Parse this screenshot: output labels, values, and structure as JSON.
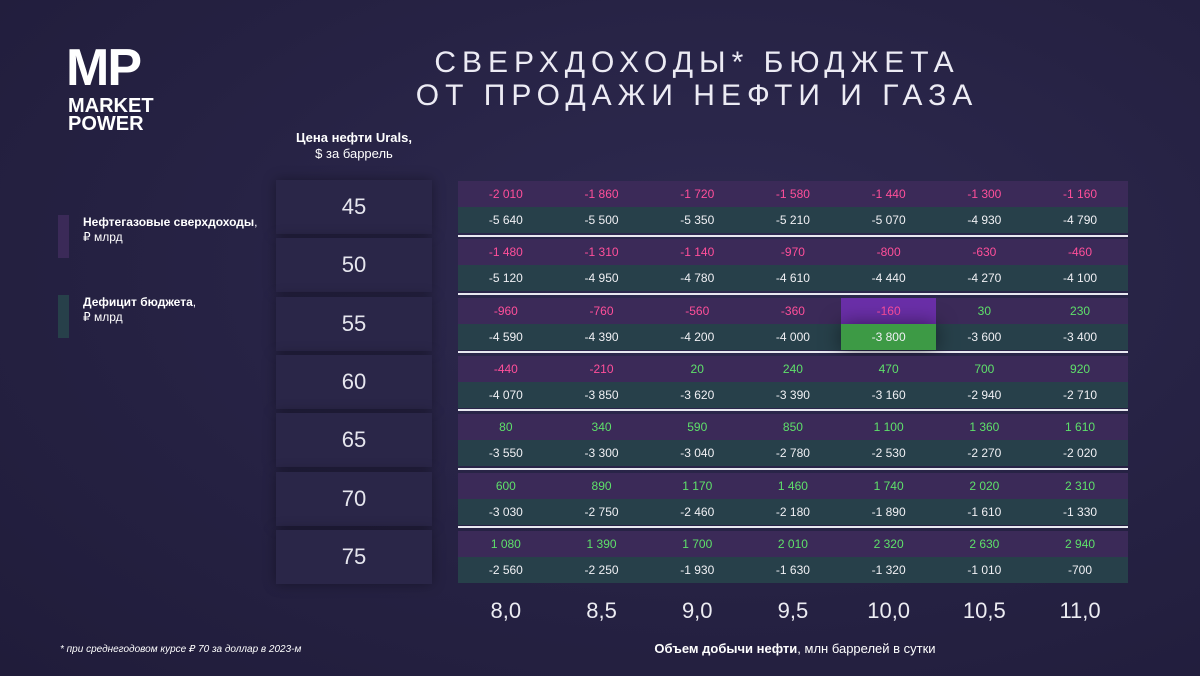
{
  "logo": {
    "mark": "MP",
    "lines": [
      "MARKET",
      "POWER"
    ]
  },
  "title": [
    "СВЕРХДОХОДЫ* БЮДЖЕТА",
    "ОТ ПРОДАЖИ НЕФТИ И ГАЗА"
  ],
  "row_header": {
    "title": "Цена нефти Urals,",
    "unit": "$ за баррель"
  },
  "legend": [
    {
      "label": "Нефтегазовые сверхдоходы",
      "sep": ",",
      "unit": "₽ млрд",
      "color": "#3b2a58"
    },
    {
      "label": "Дефицит бюджета",
      "sep": ",",
      "unit": "₽ млрд",
      "color": "#27404a"
    }
  ],
  "prices": [
    "45",
    "50",
    "55",
    "60",
    "65",
    "70",
    "75"
  ],
  "volumes": [
    "8,0",
    "8,5",
    "9,0",
    "9,5",
    "10,0",
    "10,5",
    "11,0"
  ],
  "rows": [
    {
      "excess": [
        "-2 010",
        "-1 860",
        "-1 720",
        "-1 580",
        "-1 440",
        "-1 300",
        "-1 160"
      ],
      "deficit": [
        "-5 640",
        "-5 500",
        "-5 350",
        "-5 210",
        "-5 070",
        "-4 930",
        "-4 790"
      ]
    },
    {
      "excess": [
        "-1 480",
        "-1 310",
        "-1 140",
        "-970",
        "-800",
        "-630",
        "-460"
      ],
      "deficit": [
        "-5 120",
        "-4 950",
        "-4 780",
        "-4 610",
        "-4 440",
        "-4 270",
        "-4 100"
      ]
    },
    {
      "excess": [
        "-960",
        "-760",
        "-560",
        "-360",
        "-160",
        "30",
        "230"
      ],
      "deficit": [
        "-4 590",
        "-4 390",
        "-4 200",
        "-4 000",
        "-3 800",
        "-3 600",
        "-3 400"
      ]
    },
    {
      "excess": [
        "-440",
        "-210",
        "20",
        "240",
        "470",
        "700",
        "920"
      ],
      "deficit": [
        "-4 070",
        "-3 850",
        "-3 620",
        "-3 390",
        "-3 160",
        "-2 940",
        "-2 710"
      ]
    },
    {
      "excess": [
        "80",
        "340",
        "590",
        "850",
        "1 100",
        "1 360",
        "1 610"
      ],
      "deficit": [
        "-3 550",
        "-3 300",
        "-3 040",
        "-2 780",
        "-2 530",
        "-2 270",
        "-2 020"
      ]
    },
    {
      "excess": [
        "600",
        "890",
        "1 170",
        "1 460",
        "1 740",
        "2 020",
        "2 310"
      ],
      "deficit": [
        "-3 030",
        "-2 750",
        "-2 460",
        "-2 180",
        "-1 890",
        "-1 610",
        "-1 330"
      ]
    },
    {
      "excess": [
        "1 080",
        "1 390",
        "1 700",
        "2 010",
        "2 320",
        "2 630",
        "2 940"
      ],
      "deficit": [
        "-2 560",
        "-2 250",
        "-1 930",
        "-1 630",
        "-1 320",
        "-1 010",
        "-700"
      ]
    }
  ],
  "highlight": {
    "row": 2,
    "col": 4,
    "excess_color": "#6a2fa8",
    "deficit_color": "#3d9a45"
  },
  "x_label": {
    "bold": "Объем добычи нефти",
    "rest": ", млн баррелей в сутки"
  },
  "footnote": "* при среднегодовом курсе ₽ 70 за доллар в 2023-м"
}
